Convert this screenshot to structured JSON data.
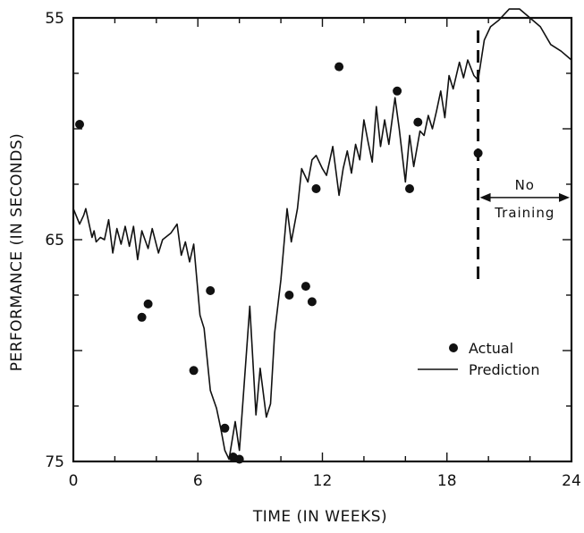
{
  "chart_data": {
    "type": "line",
    "title": "",
    "xlabel": "TIME (IN WEEKS)",
    "ylabel": "PERFORMANCE (IN SECONDS)",
    "xlim": [
      0,
      24
    ],
    "ylim": [
      55,
      75
    ],
    "y_inverted": true,
    "x_ticks": [
      "0",
      "6",
      "12",
      "18",
      "24"
    ],
    "x_tick_values": [
      0,
      6,
      12,
      18,
      24
    ],
    "y_ticks": [
      "55",
      "65",
      "75"
    ],
    "y_tick_values": [
      55,
      65,
      75
    ],
    "grid": false,
    "legend_position": "right",
    "annotation_line_x": 19.5,
    "annotation": {
      "line1": "No",
      "line2": "Training",
      "x_from": 19.5,
      "x_to": 24
    },
    "series": [
      {
        "name": "Actual",
        "kind": "scatter",
        "x": [
          0.3,
          3.3,
          3.6,
          5.8,
          6.6,
          7.3,
          7.7,
          8.0,
          10.4,
          11.2,
          11.5,
          11.7,
          12.8,
          15.6,
          16.2,
          16.6,
          19.5
        ],
        "y": [
          59.8,
          68.5,
          67.9,
          70.9,
          67.3,
          73.5,
          74.8,
          74.9,
          67.5,
          67.1,
          67.8,
          62.7,
          57.2,
          58.3,
          62.7,
          59.7,
          61.1
        ]
      },
      {
        "name": "Prediction",
        "kind": "line",
        "x": [
          0.0,
          0.3,
          0.5,
          0.6,
          0.9,
          1.0,
          1.1,
          1.3,
          1.5,
          1.7,
          1.9,
          2.1,
          2.3,
          2.5,
          2.7,
          2.9,
          3.1,
          3.3,
          3.6,
          3.8,
          4.1,
          4.3,
          4.7,
          5.0,
          5.2,
          5.4,
          5.6,
          5.8,
          6.1,
          6.3,
          6.6,
          6.9,
          7.1,
          7.3,
          7.5,
          7.8,
          8.0,
          8.5,
          8.8,
          9.0,
          9.3,
          9.5,
          9.7,
          10.0,
          10.3,
          10.5,
          10.8,
          11.0,
          11.3,
          11.5,
          11.7,
          12.0,
          12.2,
          12.5,
          12.8,
          13.0,
          13.2,
          13.4,
          13.6,
          13.8,
          14.0,
          14.2,
          14.4,
          14.6,
          14.8,
          15.0,
          15.2,
          15.5,
          15.7,
          16.0,
          16.2,
          16.4,
          16.7,
          16.9,
          17.1,
          17.3,
          17.5,
          17.7,
          17.9,
          18.1,
          18.3,
          18.6,
          18.8,
          19.0,
          19.3,
          19.5,
          19.8,
          20.1,
          20.5,
          21.0,
          21.5,
          22.0,
          22.5,
          23.0,
          23.5,
          24.0
        ],
        "y": [
          63.6,
          64.3,
          63.9,
          63.6,
          64.9,
          64.6,
          65.1,
          64.9,
          65.0,
          64.1,
          65.6,
          64.5,
          65.2,
          64.4,
          65.3,
          64.4,
          65.9,
          64.6,
          65.4,
          64.5,
          65.6,
          65.0,
          64.7,
          64.3,
          65.7,
          65.1,
          66.0,
          65.2,
          68.4,
          69.0,
          71.8,
          72.6,
          73.5,
          74.5,
          74.9,
          73.2,
          74.5,
          68.0,
          72.9,
          70.8,
          73.0,
          72.4,
          69.2,
          66.8,
          63.6,
          65.1,
          63.6,
          61.8,
          62.4,
          61.4,
          61.2,
          61.8,
          62.1,
          60.8,
          63.0,
          61.8,
          61.0,
          62.0,
          60.7,
          61.4,
          59.6,
          60.6,
          61.5,
          59.0,
          60.8,
          59.6,
          60.7,
          58.6,
          60.0,
          62.4,
          60.3,
          61.7,
          60.1,
          60.3,
          59.4,
          60.0,
          59.2,
          58.3,
          59.5,
          57.6,
          58.2,
          57.0,
          57.7,
          56.9,
          57.6,
          57.8,
          56.0,
          55.4,
          55.1,
          54.6,
          54.6,
          55.0,
          55.4,
          56.2,
          56.5,
          56.9
        ]
      }
    ]
  }
}
